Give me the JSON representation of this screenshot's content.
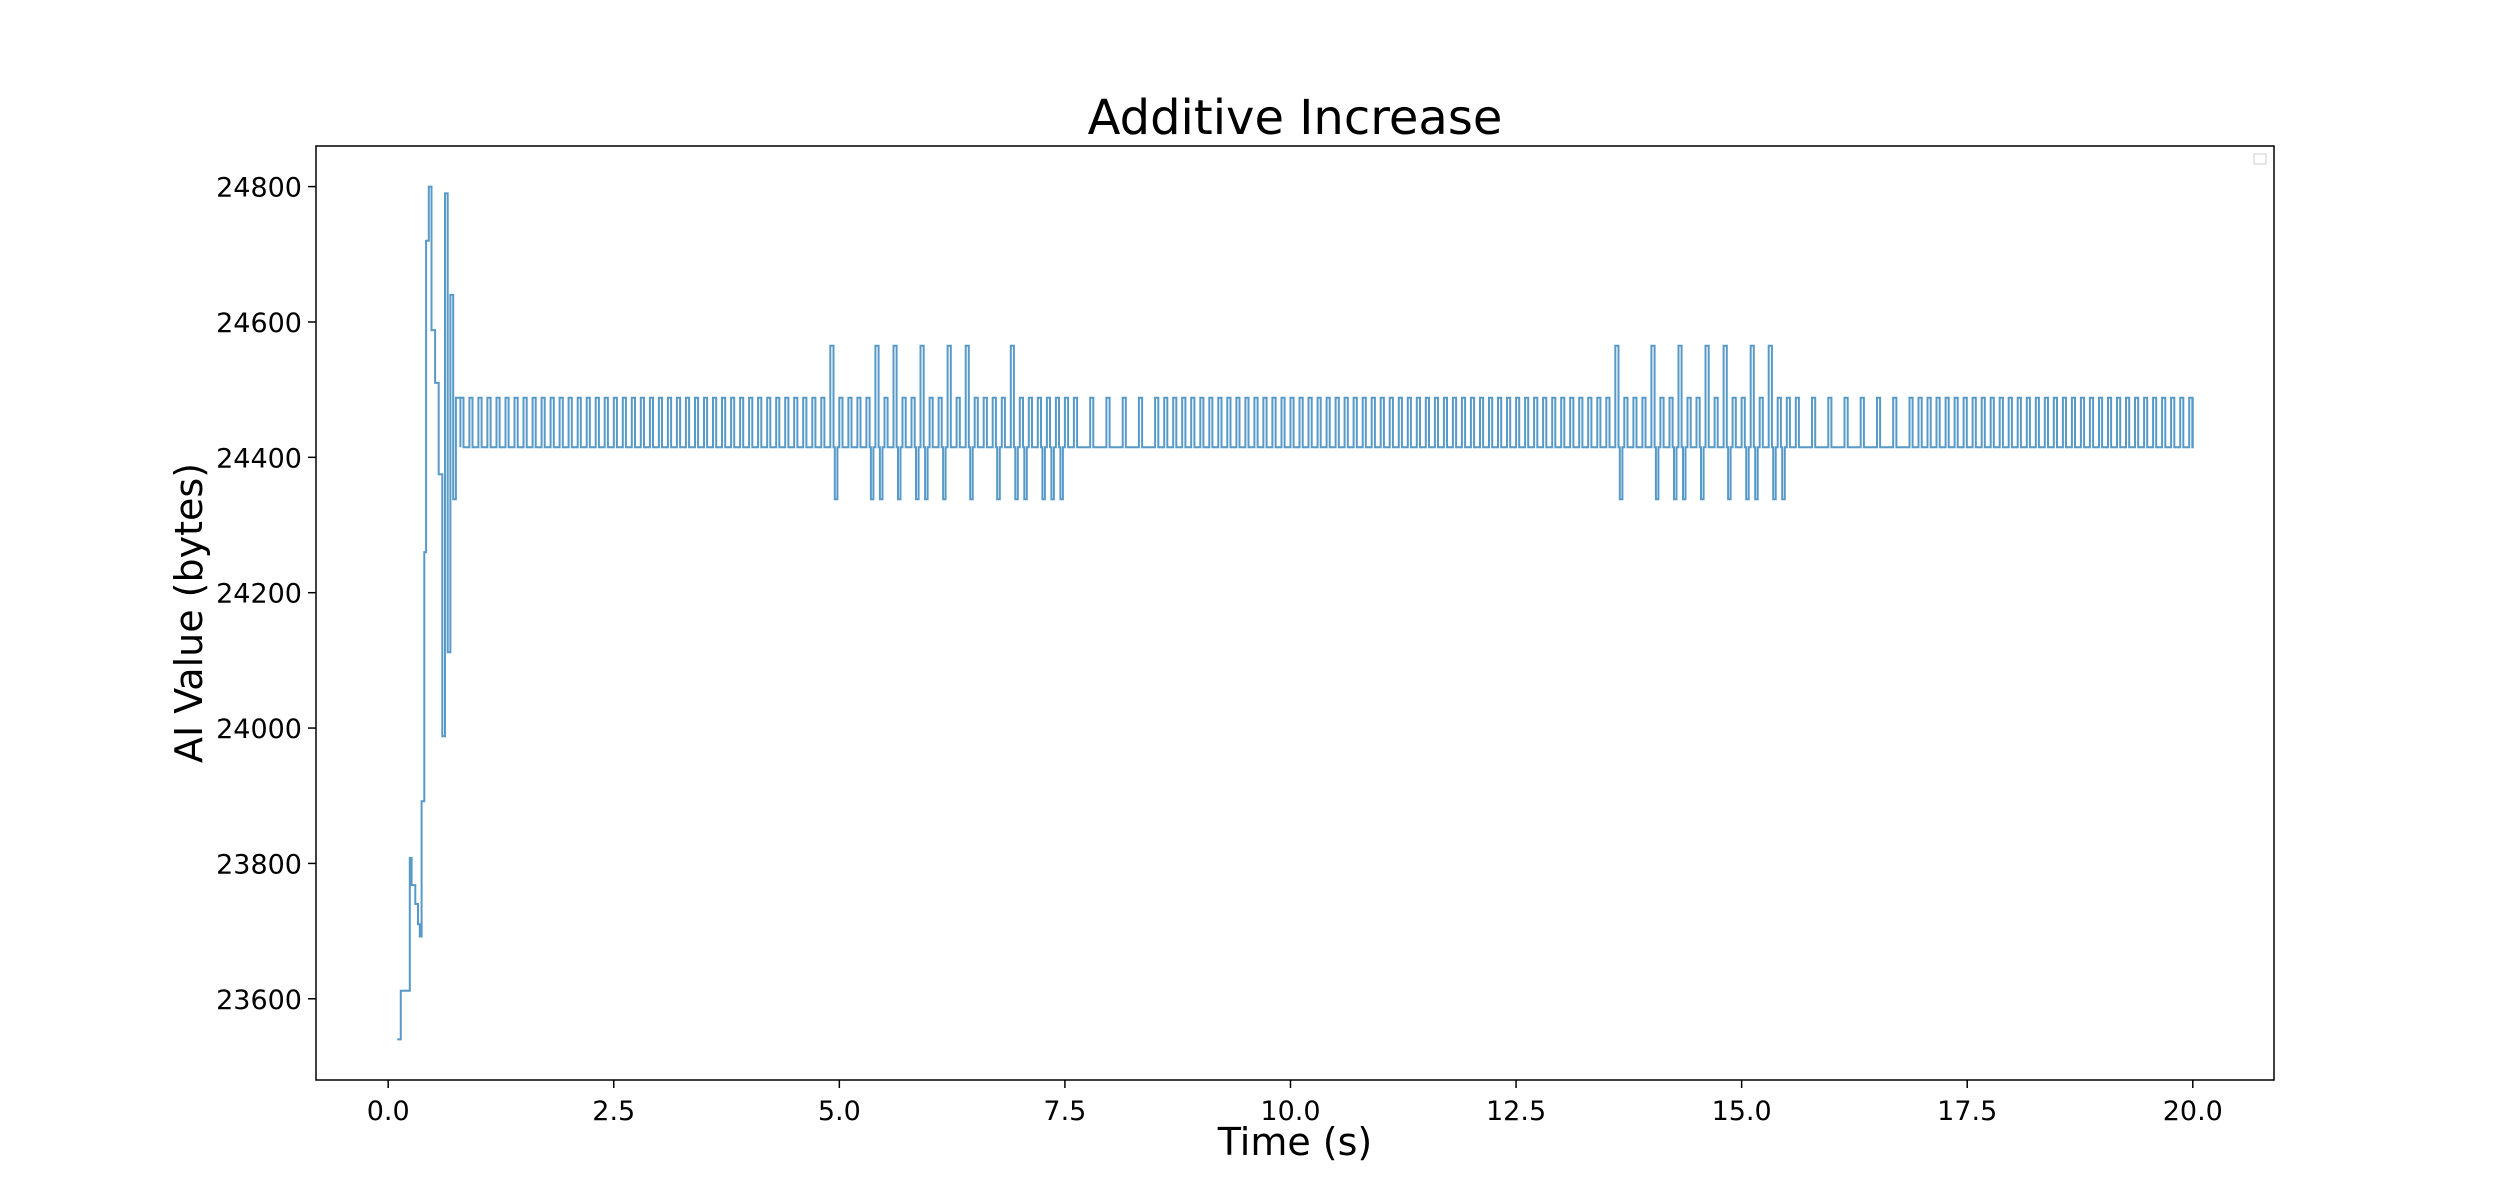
{
  "chart_data": {
    "type": "line",
    "title": "Additive Increase",
    "xlabel": "Time (s)",
    "ylabel": "AI Value (bytes)",
    "xlim": [
      -0.8,
      20.9
    ],
    "ylim": [
      23480,
      24860
    ],
    "xticks": [
      0.0,
      2.5,
      5.0,
      7.5,
      10.0,
      12.5,
      15.0,
      17.5,
      20.0
    ],
    "xtick_labels": [
      "0.0",
      "2.5",
      "5.0",
      "7.5",
      "10.0",
      "12.5",
      "15.0",
      "17.5",
      "20.0"
    ],
    "yticks": [
      23600,
      23800,
      24000,
      24200,
      24400,
      24600,
      24800
    ],
    "ytick_labels": [
      "23600",
      "23800",
      "24000",
      "24200",
      "24400",
      "24600",
      "24800"
    ],
    "grid": false,
    "legend": "top-right (empty)",
    "line_color": "#1f77b4",
    "drawstyle": "steps",
    "series": [
      {
        "startup": [
          [
            0.1,
            23540
          ],
          [
            0.14,
            23612
          ],
          [
            0.22,
            23612
          ],
          [
            0.24,
            23808
          ],
          [
            0.26,
            23768
          ],
          [
            0.3,
            23740
          ],
          [
            0.33,
            23710
          ],
          [
            0.35,
            23692
          ],
          [
            0.37,
            23892
          ],
          [
            0.4,
            24260
          ],
          [
            0.42,
            24720
          ],
          [
            0.45,
            24800
          ],
          [
            0.48,
            24588
          ],
          [
            0.52,
            24510
          ],
          [
            0.56,
            24375
          ],
          [
            0.6,
            23988
          ],
          [
            0.63,
            24790
          ],
          [
            0.66,
            24112
          ],
          [
            0.69,
            24640
          ],
          [
            0.72,
            24338
          ],
          [
            0.75,
            24488
          ],
          [
            0.8,
            24415
          ]
        ],
        "steady_low": 24415,
        "steady_high": 24488,
        "spike_high": 24565,
        "dip_low": 24338,
        "t_end": 20.0,
        "high_spikes": [
          4.93,
          5.35,
          5.62,
          5.88,
          6.15,
          6.42,
          6.85,
          13.62,
          14.04,
          14.3,
          14.56,
          14.82,
          15.08,
          15.34
        ],
        "dips": [
          4.9,
          4.94,
          5.37,
          5.41,
          5.63,
          5.67,
          5.89,
          5.93,
          6.14,
          6.18,
          6.4,
          6.44,
          6.72,
          6.9,
          7.05,
          7.2,
          7.33,
          7.45,
          13.6,
          13.64,
          14.03,
          14.07,
          14.29,
          14.33,
          14.55,
          14.59,
          14.8,
          14.84,
          15.06,
          15.1,
          15.31,
          15.35,
          15.45
        ],
        "pulse_period": 0.1,
        "sparse_ranges": [
          [
            7.5,
            8.4
          ],
          [
            15.5,
            16.8
          ]
        ],
        "sparse_period": 0.18
      }
    ]
  }
}
